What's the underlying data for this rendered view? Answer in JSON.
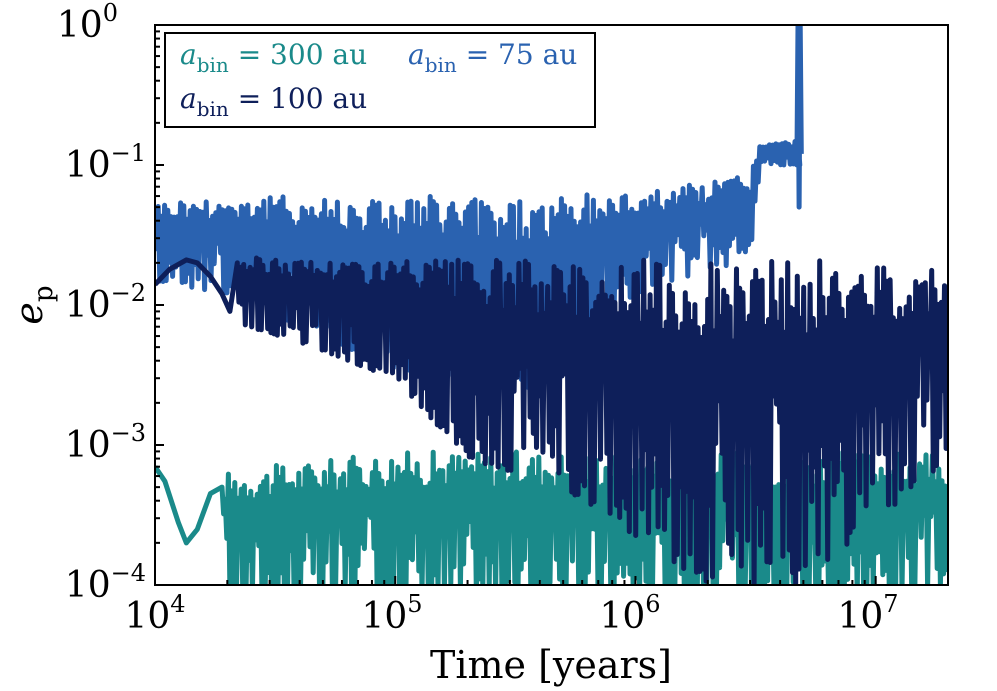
{
  "chart_data": {
    "type": "line",
    "title": "",
    "xlabel": "Time [years]",
    "ylabel": "e",
    "ylabel_sub": "p",
    "xscale": "log",
    "yscale": "log",
    "xlim": [
      10000,
      20000000
    ],
    "ylim": [
      0.0001,
      1
    ],
    "x_ticks": [
      {
        "value": 10000,
        "base": "10",
        "exp": "4"
      },
      {
        "value": 100000,
        "base": "10",
        "exp": "5"
      },
      {
        "value": 1000000,
        "base": "10",
        "exp": "6"
      },
      {
        "value": 10000000,
        "base": "10",
        "exp": "7"
      }
    ],
    "y_ticks": [
      {
        "value": 1,
        "base": "10",
        "exp": "0"
      },
      {
        "value": 0.1,
        "base": "10",
        "exp": "−1"
      },
      {
        "value": 0.01,
        "base": "10",
        "exp": "−2"
      },
      {
        "value": 0.001,
        "base": "10",
        "exp": "−3"
      },
      {
        "value": 0.0001,
        "base": "10",
        "exp": "−4"
      }
    ],
    "legend_position": "top-left",
    "series": [
      {
        "name": "a_bin = 300 au",
        "legend_var": "a",
        "legend_sub": "bin",
        "legend_rest": " = 300 au",
        "color": "#1a8a8a",
        "t_end": 20000000,
        "envelope": {
          "x": [
            10000,
            20000,
            20100,
            100000,
            1000000,
            10000000,
            20000000
          ],
          "upper": [
            0.0007,
            0.0005,
            0.00065,
            0.0009,
            0.0009,
            0.0009,
            0.00085
          ],
          "lower": [
            0.0003,
            0.0002,
            8e-05,
            8e-05,
            8e-05,
            8e-05,
            0.0001
          ]
        },
        "early_points": [
          [
            10000,
            0.0007
          ],
          [
            11000,
            0.00055
          ],
          [
            12500,
            0.00028
          ],
          [
            13500,
            0.0002
          ],
          [
            15000,
            0.00025
          ],
          [
            17000,
            0.00045
          ],
          [
            19000,
            0.0005
          ]
        ]
      },
      {
        "name": "a_bin = 75 au",
        "legend_var": "a",
        "legend_sub": "bin",
        "legend_rest": " = 75 au",
        "color": "#2a62b0",
        "t_end": 4900000,
        "envelope": {
          "x": [
            10000,
            20000,
            100000,
            400000,
            1000000,
            2000000,
            3000000,
            3300000,
            4800000
          ],
          "upper": [
            0.055,
            0.06,
            0.062,
            0.058,
            0.065,
            0.075,
            0.09,
            0.14,
            0.15
          ],
          "lower": [
            0.015,
            0.012,
            0.0035,
            0.0025,
            0.012,
            0.018,
            0.02,
            0.1,
            0.1
          ]
        },
        "spike": [
          [
            4700000,
            0.1
          ],
          [
            4750000,
            1.0
          ],
          [
            4800000,
            0.05
          ],
          [
            4850000,
            1.0
          ],
          [
            4900000,
            0.12
          ]
        ]
      },
      {
        "name": "a_bin = 100 au",
        "legend_var": "a",
        "legend_sub": "bin",
        "legend_rest": " = 100 au",
        "color": "#0e1f5a",
        "t_end": 20000000,
        "envelope": {
          "x": [
            10000,
            20000,
            100000,
            200000,
            500000,
            2000000,
            5000000,
            20000000
          ],
          "upper": [
            0.02,
            0.022,
            0.021,
            0.021,
            0.021,
            0.021,
            0.021,
            0.02
          ],
          "lower": [
            0.012,
            0.008,
            0.003,
            0.0008,
            0.0005,
            0.0001,
            0.0001,
            0.0008
          ]
        },
        "early_points": [
          [
            10000,
            0.014
          ],
          [
            11500,
            0.018
          ],
          [
            13500,
            0.021
          ],
          [
            15000,
            0.02
          ],
          [
            17000,
            0.016
          ],
          [
            19000,
            0.012
          ],
          [
            20500,
            0.009
          ],
          [
            22000,
            0.02
          ]
        ]
      }
    ]
  }
}
